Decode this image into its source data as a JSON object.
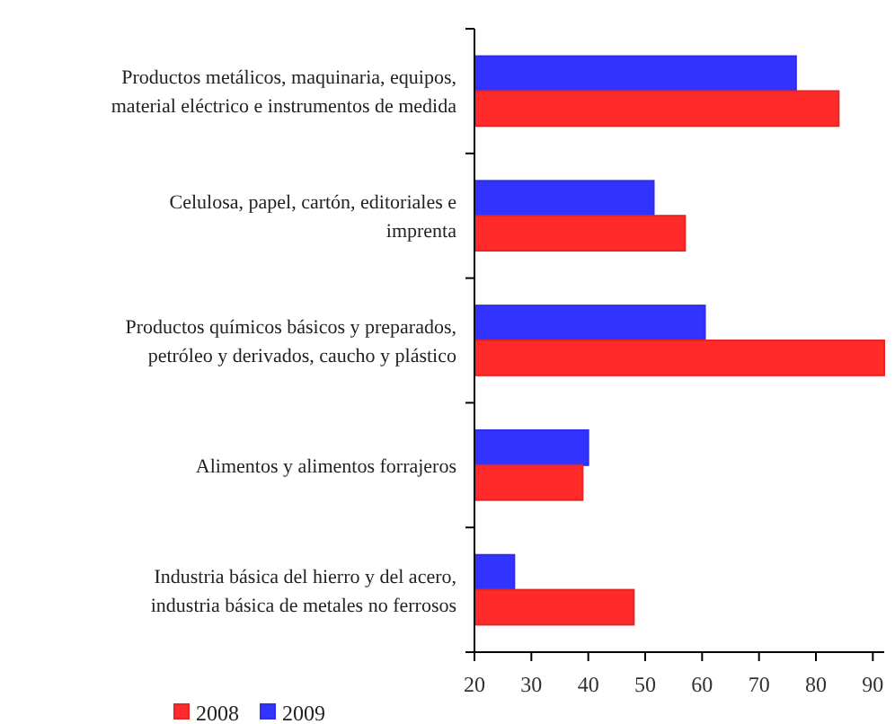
{
  "chart_data": {
    "type": "bar",
    "orientation": "horizontal",
    "categories": [
      "Productos metálicos, maquinaria, equipos, material eléctrico e instrumentos de medida",
      "Celulosa, papel, cartón, editoriales e imprenta",
      "Productos químicos básicos y preparados, petróleo y derivados, caucho y plástico",
      "Alimentos y alimentos forrajeros",
      "Industria básica del hierro y del acero, industria básica de metales no ferrosos"
    ],
    "series": [
      {
        "name": "2009",
        "color": "#3333ff",
        "values": [
          76.5,
          51.5,
          60.5,
          40,
          27
        ]
      },
      {
        "name": "2008",
        "color": "#ff2a2a",
        "values": [
          84,
          57,
          92,
          39,
          48
        ]
      }
    ],
    "xlim": [
      20,
      92
    ],
    "xticks": [
      20,
      30,
      40,
      50,
      60,
      70,
      80,
      90
    ],
    "legend": "bottom left"
  }
}
